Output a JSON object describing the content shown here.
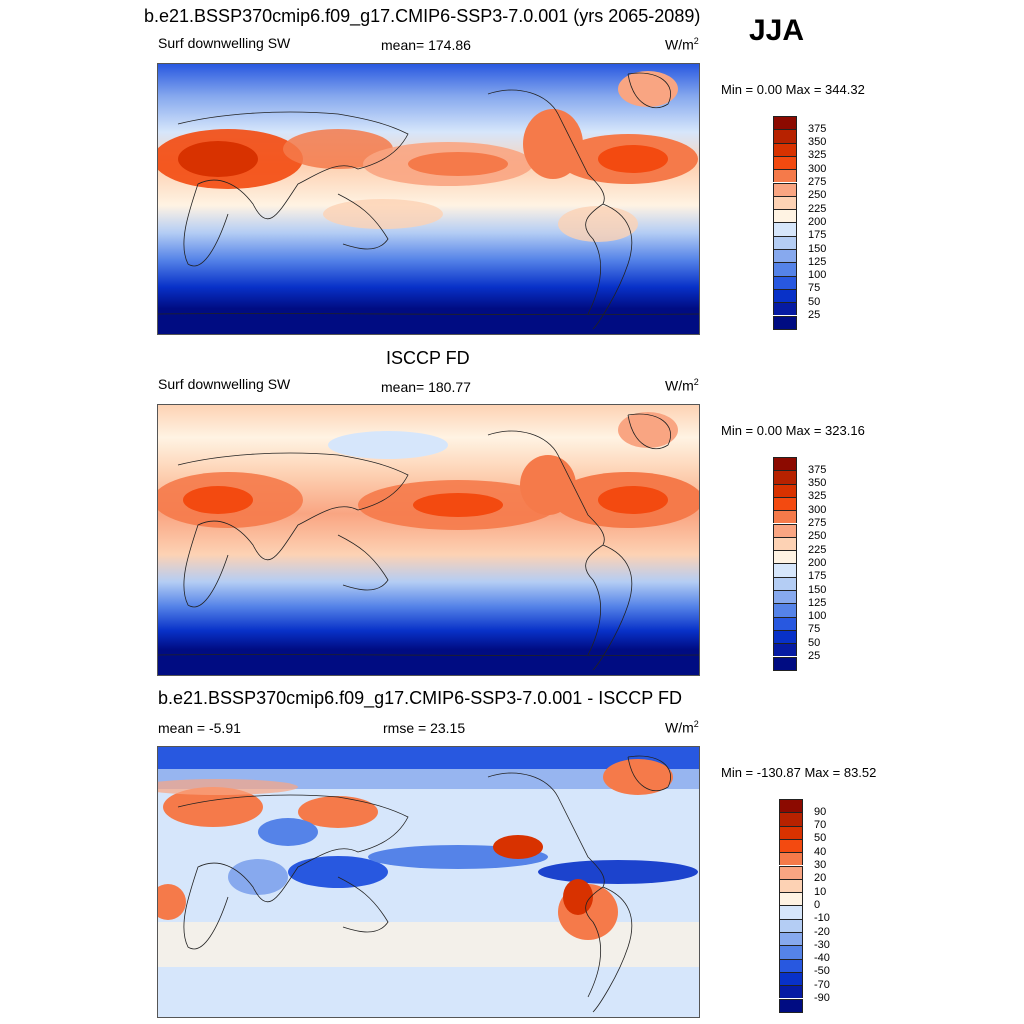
{
  "season": "JJA",
  "panels": [
    {
      "title": "b.e21.BSSP370cmip6.f09_g17.CMIP6-SSP3-7.0.001 (yrs 2065-2089)",
      "left_label": "Surf downwelling SW",
      "center_label": "mean= 174.86",
      "units": "W/m",
      "units_exp": "2",
      "minmax": "Min =   0.00 Max = 344.32",
      "colorbar": {
        "levels": [
          "375",
          "350",
          "325",
          "300",
          "275",
          "250",
          "225",
          "200",
          "175",
          "150",
          "125",
          "100",
          "75",
          "50",
          "25"
        ],
        "colors": [
          "#8c0a00",
          "#b72200",
          "#d83200",
          "#f34a10",
          "#f57a4a",
          "#f9a582",
          "#fdd2b4",
          "#fff3e3",
          "#d6e6fb",
          "#b4cdf4",
          "#87a9ee",
          "#5583e8",
          "#2858e0",
          "#0831c8",
          "#061ba3",
          "#000c82"
        ]
      }
    },
    {
      "title": "ISCCP FD",
      "left_label": "Surf downwelling SW",
      "center_label": "mean= 180.77",
      "units": "W/m",
      "units_exp": "2",
      "minmax": "Min =   0.00 Max = 323.16",
      "colorbar": {
        "levels": [
          "375",
          "350",
          "325",
          "300",
          "275",
          "250",
          "225",
          "200",
          "175",
          "150",
          "125",
          "100",
          "75",
          "50",
          "25"
        ],
        "colors": [
          "#8c0a00",
          "#b72200",
          "#d83200",
          "#f34a10",
          "#f57a4a",
          "#f9a582",
          "#fdd2b4",
          "#fff3e3",
          "#d6e6fb",
          "#b4cdf4",
          "#87a9ee",
          "#5583e8",
          "#2858e0",
          "#0831c8",
          "#061ba3",
          "#000c82"
        ]
      }
    },
    {
      "title": "b.e21.BSSP370cmip6.f09_g17.CMIP6-SSP3-7.0.001 - ISCCP FD",
      "left_label": "mean =  -5.91",
      "center_label": "rmse =  23.15",
      "units": "W/m",
      "units_exp": "2",
      "minmax": "Min = -130.87 Max =  83.52",
      "colorbar": {
        "levels": [
          "90",
          "70",
          "50",
          "40",
          "30",
          "20",
          "10",
          "0",
          "-10",
          "-20",
          "-30",
          "-40",
          "-50",
          "-70",
          "-90"
        ],
        "colors": [
          "#8c0a00",
          "#b72200",
          "#d83200",
          "#f34a10",
          "#f57a4a",
          "#f9a582",
          "#fdd2b4",
          "#fff3e3",
          "#d6e6fb",
          "#b4cdf4",
          "#87a9ee",
          "#5583e8",
          "#2858e0",
          "#0831c8",
          "#061ba3",
          "#000c82"
        ]
      }
    }
  ]
}
